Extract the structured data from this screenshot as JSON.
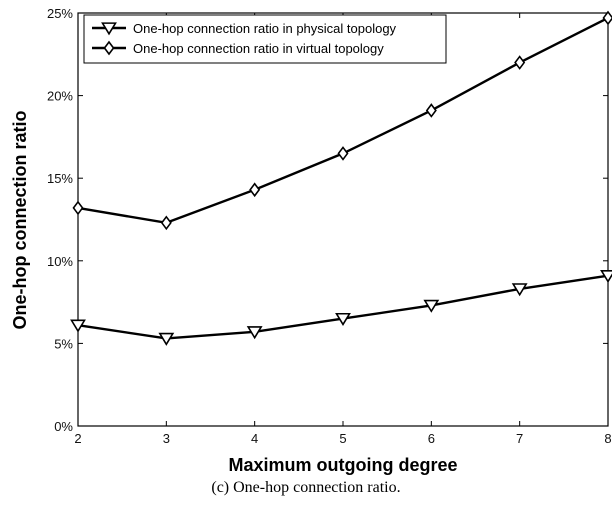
{
  "caption": "(c) One-hop connection ratio.",
  "chart_data": {
    "type": "line",
    "xlabel": "Maximum outgoing degree",
    "ylabel": "One-hop connection ratio",
    "x": [
      2,
      3,
      4,
      5,
      6,
      7,
      8
    ],
    "xlim": [
      2,
      8
    ],
    "ylim": [
      0,
      25
    ],
    "xticks": [
      "2",
      "3",
      "4",
      "5",
      "6",
      "7",
      "8"
    ],
    "yticks": [
      {
        "value": 0,
        "label": "0%"
      },
      {
        "value": 5,
        "label": "5%"
      },
      {
        "value": 10,
        "label": "10%"
      },
      {
        "value": 15,
        "label": "15%"
      },
      {
        "value": 20,
        "label": "20%"
      },
      {
        "value": 25,
        "label": "25%"
      }
    ],
    "grid": false,
    "legend_position": "top-left",
    "series": [
      {
        "name": "One-hop connection ratio in physical topology",
        "marker": "triangle-down",
        "values": [
          6.1,
          5.3,
          5.7,
          6.5,
          7.3,
          8.3,
          9.1
        ]
      },
      {
        "name": "One-hop connection ratio in virtual topology",
        "marker": "diamond",
        "values": [
          13.2,
          12.3,
          14.3,
          16.5,
          19.1,
          22.0,
          24.7
        ]
      }
    ],
    "colors": {
      "line": "#000000",
      "background": "#ffffff"
    }
  }
}
